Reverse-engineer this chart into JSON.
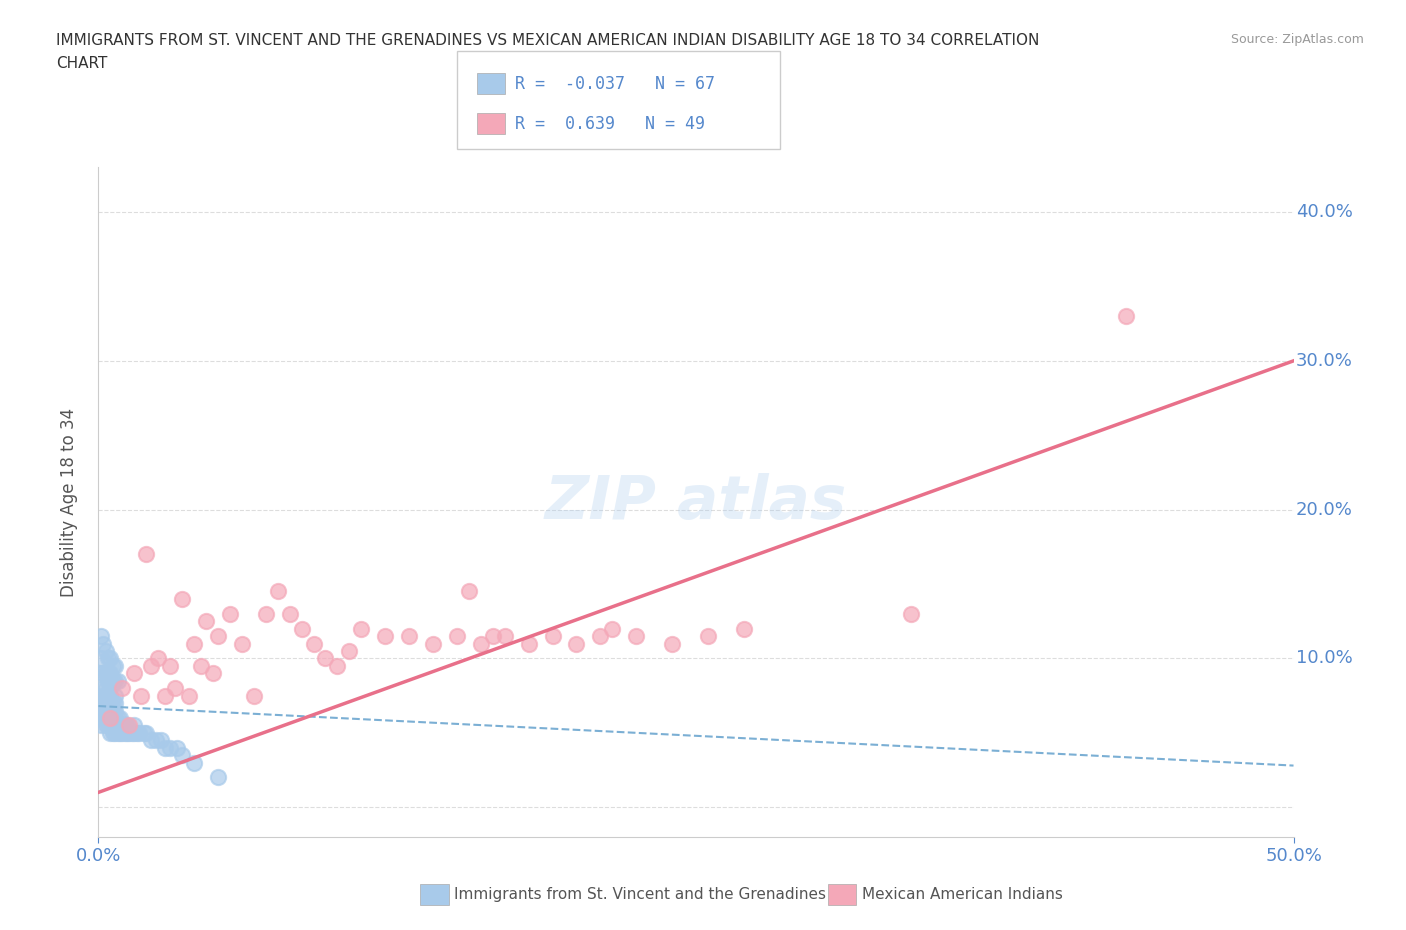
{
  "title_line1": "IMMIGRANTS FROM ST. VINCENT AND THE GRENADINES VS MEXICAN AMERICAN INDIAN DISABILITY AGE 18 TO 34 CORRELATION",
  "title_line2": "CHART",
  "source": "Source: ZipAtlas.com",
  "ylabel": "Disability Age 18 to 34",
  "xmin": 0.0,
  "xmax": 0.5,
  "ymin": -0.02,
  "ymax": 0.43,
  "R_blue": -0.037,
  "N_blue": 67,
  "R_pink": 0.639,
  "N_pink": 49,
  "blue_color": "#A8CAEA",
  "pink_color": "#F4A8B8",
  "blue_line_color": "#7BAFD4",
  "pink_line_color": "#E8708A",
  "legend_label_blue": "Immigrants from St. Vincent and the Grenadines",
  "legend_label_pink": "Mexican American Indians",
  "blue_scatter_x": [
    0.001,
    0.001,
    0.001,
    0.002,
    0.002,
    0.002,
    0.002,
    0.003,
    0.003,
    0.003,
    0.003,
    0.003,
    0.003,
    0.004,
    0.004,
    0.004,
    0.004,
    0.004,
    0.004,
    0.005,
    0.005,
    0.005,
    0.005,
    0.005,
    0.005,
    0.005,
    0.005,
    0.006,
    0.006,
    0.006,
    0.006,
    0.006,
    0.007,
    0.007,
    0.007,
    0.007,
    0.007,
    0.007,
    0.008,
    0.008,
    0.008,
    0.009,
    0.009,
    0.009,
    0.01,
    0.01,
    0.011,
    0.011,
    0.012,
    0.012,
    0.013,
    0.014,
    0.015,
    0.015,
    0.016,
    0.017,
    0.019,
    0.02,
    0.022,
    0.024,
    0.026,
    0.028,
    0.03,
    0.033,
    0.035,
    0.04,
    0.05
  ],
  "blue_scatter_y": [
    0.055,
    0.065,
    0.075,
    0.06,
    0.065,
    0.07,
    0.08,
    0.055,
    0.06,
    0.065,
    0.07,
    0.075,
    0.08,
    0.055,
    0.06,
    0.065,
    0.07,
    0.075,
    0.085,
    0.05,
    0.055,
    0.06,
    0.065,
    0.07,
    0.075,
    0.08,
    0.085,
    0.05,
    0.055,
    0.06,
    0.065,
    0.07,
    0.05,
    0.055,
    0.06,
    0.065,
    0.07,
    0.075,
    0.05,
    0.055,
    0.06,
    0.05,
    0.055,
    0.06,
    0.05,
    0.055,
    0.05,
    0.055,
    0.05,
    0.055,
    0.05,
    0.05,
    0.05,
    0.055,
    0.05,
    0.05,
    0.05,
    0.05,
    0.045,
    0.045,
    0.045,
    0.04,
    0.04,
    0.04,
    0.035,
    0.03,
    0.02
  ],
  "blue_extra_x": [
    0.001,
    0.001,
    0.001,
    0.002,
    0.002,
    0.003,
    0.003,
    0.004,
    0.004,
    0.005,
    0.005,
    0.006,
    0.006,
    0.007,
    0.007,
    0.008
  ],
  "blue_extra_y": [
    0.09,
    0.1,
    0.115,
    0.09,
    0.11,
    0.09,
    0.105,
    0.09,
    0.1,
    0.09,
    0.1,
    0.085,
    0.095,
    0.085,
    0.095,
    0.085
  ],
  "pink_scatter_x": [
    0.005,
    0.01,
    0.013,
    0.015,
    0.018,
    0.02,
    0.022,
    0.025,
    0.028,
    0.03,
    0.032,
    0.035,
    0.038,
    0.04,
    0.043,
    0.045,
    0.048,
    0.05,
    0.055,
    0.06,
    0.065,
    0.07,
    0.075,
    0.08,
    0.085,
    0.09,
    0.095,
    0.1,
    0.105,
    0.11,
    0.12,
    0.13,
    0.14,
    0.15,
    0.155,
    0.16,
    0.165,
    0.17,
    0.18,
    0.19,
    0.2,
    0.21,
    0.215,
    0.225,
    0.24,
    0.255,
    0.27,
    0.34,
    0.43
  ],
  "pink_scatter_y": [
    0.06,
    0.08,
    0.055,
    0.09,
    0.075,
    0.17,
    0.095,
    0.1,
    0.075,
    0.095,
    0.08,
    0.14,
    0.075,
    0.11,
    0.095,
    0.125,
    0.09,
    0.115,
    0.13,
    0.11,
    0.075,
    0.13,
    0.145,
    0.13,
    0.12,
    0.11,
    0.1,
    0.095,
    0.105,
    0.12,
    0.115,
    0.115,
    0.11,
    0.115,
    0.145,
    0.11,
    0.115,
    0.115,
    0.11,
    0.115,
    0.11,
    0.115,
    0.12,
    0.115,
    0.11,
    0.115,
    0.12,
    0.13,
    0.33
  ],
  "blue_line_x0": 0.0,
  "blue_line_x1": 0.5,
  "blue_line_y0": 0.068,
  "blue_line_y1": 0.028,
  "pink_line_x0": 0.0,
  "pink_line_x1": 0.5,
  "pink_line_y0": 0.01,
  "pink_line_y1": 0.3,
  "grid_color": "#DDDDDD",
  "background_color": "#FFFFFF",
  "tick_color": "#5588CC",
  "title_color": "#333333",
  "source_color": "#999999"
}
